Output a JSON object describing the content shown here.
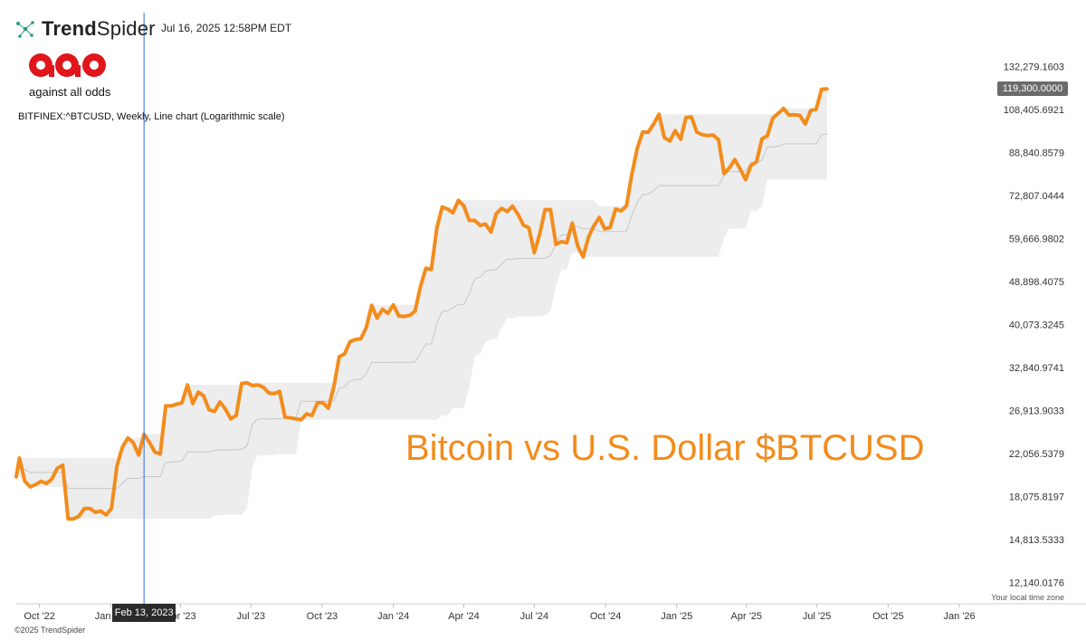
{
  "header": {
    "brand_prefix": "Trend",
    "brand_suffix": "Spider",
    "brand_icon": "network-nodes-icon",
    "datetime": "Jul 16, 2025 12:58PM EDT",
    "logo_text": "aao",
    "logo_tagline": "against all odds",
    "symbol_line": "BITFINEX:^BTCUSD, Weekly, Line chart (Logarithmic scale)"
  },
  "overlay_title": "Bitcoin vs U.S. Dollar $BTCUSD",
  "copyright": "©2025 TrendSpider",
  "timezone_note": "Your local time zone",
  "price_badge": "119,300.0000",
  "cursor_label": "Feb 13, 2023",
  "colors": {
    "line": "#f28c1c",
    "band": "#ededed",
    "midline": "#c8c8c8",
    "cursor": "#2f6fd6",
    "brand_red": "#e0161b"
  },
  "chart_data": {
    "type": "line",
    "scale": "log",
    "ylim": [
      11000,
      140000
    ],
    "xlim": [
      "2022-09-01",
      "2026-02-05"
    ],
    "y_ticks": [
      {
        "value": 132279.1603,
        "label": "132,279.1603"
      },
      {
        "value": 108405.6921,
        "label": "108,405.6921"
      },
      {
        "value": 88840.8579,
        "label": "88,840.8579"
      },
      {
        "value": 72807.0444,
        "label": "72,807.0444"
      },
      {
        "value": 59666.9802,
        "label": "59,666.9802"
      },
      {
        "value": 48898.4075,
        "label": "48,898.4075"
      },
      {
        "value": 40073.3245,
        "label": "40,073.3245"
      },
      {
        "value": 32840.9741,
        "label": "32,840.9741"
      },
      {
        "value": 26913.9033,
        "label": "26,913.9033"
      },
      {
        "value": 22056.5379,
        "label": "22,056.5379"
      },
      {
        "value": 18075.8197,
        "label": "18,075.8197"
      },
      {
        "value": 14813.5333,
        "label": "14,813.5333"
      },
      {
        "value": 12140.0176,
        "label": "12,140.0176"
      }
    ],
    "x_ticks": [
      {
        "date": "2022-10-01",
        "label": "Oct '22"
      },
      {
        "date": "2023-01-01",
        "label": "Jan '23"
      },
      {
        "date": "2023-04-01",
        "label": "Apr '23"
      },
      {
        "date": "2023-07-01",
        "label": "Jul '23"
      },
      {
        "date": "2023-10-01",
        "label": "Oct '23"
      },
      {
        "date": "2024-01-01",
        "label": "Jan '24"
      },
      {
        "date": "2024-04-01",
        "label": "Apr '24"
      },
      {
        "date": "2024-07-01",
        "label": "Jul '24"
      },
      {
        "date": "2024-10-01",
        "label": "Oct '24"
      },
      {
        "date": "2025-01-01",
        "label": "Jan '25"
      },
      {
        "date": "2025-04-01",
        "label": "Apr '25"
      },
      {
        "date": "2025-07-01",
        "label": "Jul '25"
      },
      {
        "date": "2025-10-01",
        "label": "Oct '25"
      },
      {
        "date": "2026-01-01",
        "label": "Jan '26"
      }
    ],
    "cursor_date": "2023-02-13",
    "series": [
      {
        "points": [
          [
            "2022-09-01",
            19800
          ],
          [
            "2022-09-05",
            21600
          ],
          [
            "2022-09-12",
            19400
          ],
          [
            "2022-09-19",
            18900
          ],
          [
            "2022-09-26",
            19100
          ],
          [
            "2022-10-03",
            19400
          ],
          [
            "2022-10-10",
            19200
          ],
          [
            "2022-10-17",
            19600
          ],
          [
            "2022-10-24",
            20600
          ],
          [
            "2022-10-31",
            20900
          ],
          [
            "2022-11-07",
            16300
          ],
          [
            "2022-11-14",
            16300
          ],
          [
            "2022-11-21",
            16500
          ],
          [
            "2022-11-28",
            17100
          ],
          [
            "2022-12-05",
            17100
          ],
          [
            "2022-12-12",
            16800
          ],
          [
            "2022-12-19",
            16900
          ],
          [
            "2022-12-26",
            16600
          ],
          [
            "2023-01-02",
            17100
          ],
          [
            "2023-01-09",
            20800
          ],
          [
            "2023-01-16",
            22700
          ],
          [
            "2023-01-23",
            23700
          ],
          [
            "2023-01-30",
            23200
          ],
          [
            "2023-02-06",
            21900
          ],
          [
            "2023-02-13",
            24100
          ],
          [
            "2023-02-20",
            23200
          ],
          [
            "2023-02-27",
            22200
          ],
          [
            "2023-03-06",
            22000
          ],
          [
            "2023-03-13",
            27500
          ],
          [
            "2023-03-20",
            27500
          ],
          [
            "2023-03-27",
            27700
          ],
          [
            "2023-04-03",
            27900
          ],
          [
            "2023-04-10",
            30300
          ],
          [
            "2023-04-17",
            27800
          ],
          [
            "2023-04-24",
            29300
          ],
          [
            "2023-05-01",
            28800
          ],
          [
            "2023-05-08",
            27000
          ],
          [
            "2023-05-15",
            26800
          ],
          [
            "2023-05-22",
            28000
          ],
          [
            "2023-05-29",
            27100
          ],
          [
            "2023-06-05",
            25900
          ],
          [
            "2023-06-12",
            26300
          ],
          [
            "2023-06-19",
            30500
          ],
          [
            "2023-06-26",
            30600
          ],
          [
            "2023-07-03",
            30200
          ],
          [
            "2023-07-10",
            30300
          ],
          [
            "2023-07-17",
            30000
          ],
          [
            "2023-07-24",
            29200
          ],
          [
            "2023-07-31",
            29100
          ],
          [
            "2023-08-07",
            29400
          ],
          [
            "2023-08-14",
            26100
          ],
          [
            "2023-08-21",
            26000
          ],
          [
            "2023-08-28",
            25900
          ],
          [
            "2023-09-04",
            25800
          ],
          [
            "2023-09-11",
            26500
          ],
          [
            "2023-09-18",
            26300
          ],
          [
            "2023-09-25",
            27900
          ],
          [
            "2023-10-02",
            27900
          ],
          [
            "2023-10-09",
            27200
          ],
          [
            "2023-10-16",
            30000
          ],
          [
            "2023-10-23",
            34500
          ],
          [
            "2023-10-30",
            35000
          ],
          [
            "2023-11-06",
            37000
          ],
          [
            "2023-11-13",
            37400
          ],
          [
            "2023-11-20",
            37500
          ],
          [
            "2023-11-27",
            39500
          ],
          [
            "2023-12-04",
            43800
          ],
          [
            "2023-12-11",
            41300
          ],
          [
            "2023-12-18",
            43000
          ],
          [
            "2023-12-25",
            42200
          ],
          [
            "2024-01-01",
            43900
          ],
          [
            "2024-01-08",
            41700
          ],
          [
            "2024-01-15",
            41600
          ],
          [
            "2024-01-22",
            41800
          ],
          [
            "2024-01-29",
            42600
          ],
          [
            "2024-02-05",
            47800
          ],
          [
            "2024-02-12",
            52000
          ],
          [
            "2024-02-19",
            51700
          ],
          [
            "2024-02-26",
            62500
          ],
          [
            "2024-03-04",
            69000
          ],
          [
            "2024-03-11",
            68400
          ],
          [
            "2024-03-18",
            67200
          ],
          [
            "2024-03-25",
            71200
          ],
          [
            "2024-04-01",
            69400
          ],
          [
            "2024-04-08",
            64900
          ],
          [
            "2024-04-15",
            64900
          ],
          [
            "2024-04-22",
            63400
          ],
          [
            "2024-04-29",
            63800
          ],
          [
            "2024-05-06",
            61500
          ],
          [
            "2024-05-13",
            67000
          ],
          [
            "2024-05-20",
            68600
          ],
          [
            "2024-05-27",
            67600
          ],
          [
            "2024-06-03",
            69300
          ],
          [
            "2024-06-10",
            66700
          ],
          [
            "2024-06-17",
            63500
          ],
          [
            "2024-06-24",
            62700
          ],
          [
            "2024-07-01",
            55900
          ],
          [
            "2024-07-08",
            60800
          ],
          [
            "2024-07-15",
            68200
          ],
          [
            "2024-07-22",
            68200
          ],
          [
            "2024-07-29",
            58100
          ],
          [
            "2024-08-05",
            58800
          ],
          [
            "2024-08-12",
            58500
          ],
          [
            "2024-08-19",
            64100
          ],
          [
            "2024-08-26",
            57700
          ],
          [
            "2024-09-02",
            54800
          ],
          [
            "2024-09-09",
            60000
          ],
          [
            "2024-09-16",
            63300
          ],
          [
            "2024-09-23",
            65800
          ],
          [
            "2024-09-30",
            62400
          ],
          [
            "2024-10-07",
            62800
          ],
          [
            "2024-10-14",
            68400
          ],
          [
            "2024-10-21",
            67800
          ],
          [
            "2024-10-28",
            69400
          ],
          [
            "2024-11-04",
            80400
          ],
          [
            "2024-11-11",
            90500
          ],
          [
            "2024-11-18",
            97700
          ],
          [
            "2024-11-25",
            97500
          ],
          [
            "2024-12-02",
            101200
          ],
          [
            "2024-12-09",
            106100
          ],
          [
            "2024-12-16",
            95200
          ],
          [
            "2024-12-23",
            93700
          ],
          [
            "2024-12-30",
            98300
          ],
          [
            "2025-01-06",
            94500
          ],
          [
            "2025-01-13",
            104500
          ],
          [
            "2025-01-20",
            104800
          ],
          [
            "2025-01-27",
            97600
          ],
          [
            "2025-02-03",
            96500
          ],
          [
            "2025-02-10",
            96100
          ],
          [
            "2025-02-17",
            96300
          ],
          [
            "2025-02-24",
            94300
          ],
          [
            "2025-03-03",
            80700
          ],
          [
            "2025-03-10",
            82700
          ],
          [
            "2025-03-17",
            86000
          ],
          [
            "2025-03-24",
            82300
          ],
          [
            "2025-03-31",
            78400
          ],
          [
            "2025-04-07",
            83700
          ],
          [
            "2025-04-14",
            85100
          ],
          [
            "2025-04-21",
            94600
          ],
          [
            "2025-04-28",
            96000
          ],
          [
            "2025-05-05",
            104200
          ],
          [
            "2025-05-12",
            106500
          ],
          [
            "2025-05-19",
            109000
          ],
          [
            "2025-05-26",
            105700
          ],
          [
            "2025-06-02",
            105800
          ],
          [
            "2025-06-09",
            105500
          ],
          [
            "2025-06-16",
            101400
          ],
          [
            "2025-06-23",
            107900
          ],
          [
            "2025-06-30",
            108500
          ],
          [
            "2025-07-07",
            119100
          ],
          [
            "2025-07-14",
            119300
          ]
        ]
      }
    ]
  }
}
